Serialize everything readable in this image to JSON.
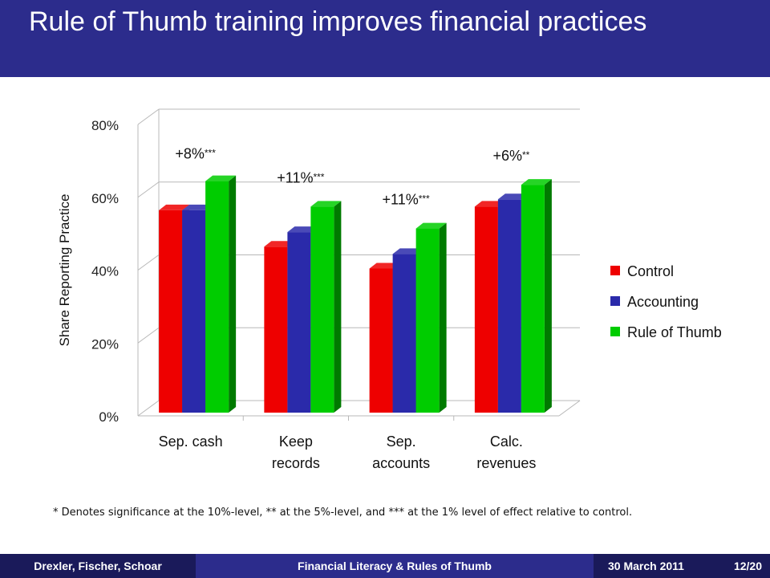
{
  "slide": {
    "title": "Rule of Thumb training improves financial practices",
    "footnote": "* Denotes significance at the 10%-level, ** at the 5%-level, and *** at the 1% level of effect relative to control."
  },
  "footer": {
    "authors": "Drexler, Fischer, Schoar",
    "talk_title": "Financial Literacy & Rules of Thumb",
    "date": "30 March 2011",
    "page": "12/20"
  },
  "colors": {
    "control": "#ee0000",
    "accounting": "#2a2aaa",
    "rule_of_thumb": "#00cc00",
    "title_bar": "#2c2c8c",
    "footer_dark": "#1a1a5a"
  },
  "chart_data": {
    "type": "bar",
    "xlabel": "",
    "ylabel": "Share Reporting Practice",
    "ylim": [
      0,
      80
    ],
    "yticks": [
      "0%",
      "20%",
      "40%",
      "60%",
      "80%"
    ],
    "categories": [
      [
        "Sep. cash"
      ],
      [
        "Keep",
        "records"
      ],
      [
        "Sep.",
        "accounts"
      ],
      [
        "Calc.",
        "revenues"
      ]
    ],
    "series": [
      {
        "name": "Control",
        "values": [
          56,
          46,
          40,
          57
        ],
        "color": "#ee0000"
      },
      {
        "name": "Accounting",
        "values": [
          56,
          50,
          44,
          59
        ],
        "color": "#2a2aaa"
      },
      {
        "name": "Rule of Thumb",
        "values": [
          64,
          57,
          51,
          63
        ],
        "color": "#00cc00"
      }
    ],
    "annotations": [
      {
        "main": "+8%",
        "stars": "***"
      },
      {
        "main": "+11%",
        "stars": "***"
      },
      {
        "main": "+11%",
        "stars": "***"
      },
      {
        "main": "+6%",
        "stars": "**"
      }
    ],
    "legend": "right",
    "grid": true
  }
}
